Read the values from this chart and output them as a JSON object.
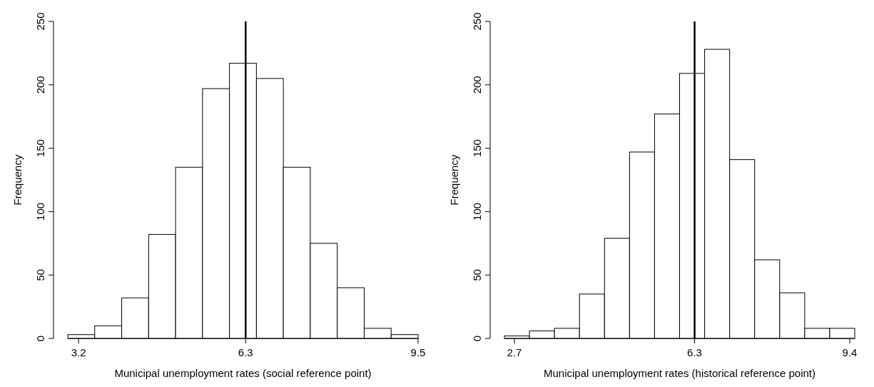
{
  "chart_data": [
    {
      "type": "histogram",
      "xlabel": "Municipal unemployment rates (social reference point)",
      "ylabel": "Frequency",
      "bins": [
        3.0,
        3.5,
        4.0,
        4.5,
        5.0,
        5.5,
        6.0,
        6.5,
        7.0,
        7.5,
        8.0,
        8.5,
        9.0,
        9.5
      ],
      "values": [
        3,
        10,
        32,
        82,
        135,
        197,
        217,
        205,
        135,
        75,
        40,
        8,
        3
      ],
      "color": "#ffffff",
      "xlim": [
        3.0,
        9.5
      ],
      "xticks": [
        3.2,
        6.3,
        9.5
      ],
      "ylim": [
        0,
        250
      ],
      "yticks": [
        0,
        50,
        100,
        150,
        200,
        250
      ],
      "ref_lines": [
        {
          "axis": "x",
          "value": 6.3,
          "color": "#000000"
        }
      ]
    },
    {
      "type": "histogram",
      "xlabel": "Municipal unemployment rates (historical reference point)",
      "ylabel": "Frequency",
      "bins": [
        2.5,
        3.0,
        3.5,
        4.0,
        4.5,
        5.0,
        5.5,
        6.0,
        6.5,
        7.0,
        7.5,
        8.0,
        8.5,
        9.0,
        9.5
      ],
      "values": [
        2,
        6,
        8,
        35,
        79,
        147,
        177,
        209,
        228,
        141,
        62,
        36,
        8,
        8
      ],
      "color": "#ffffff",
      "xlim": [
        2.5,
        9.5
      ],
      "xticks": [
        2.7,
        6.3,
        9.4
      ],
      "ylim": [
        0,
        250
      ],
      "yticks": [
        0,
        50,
        100,
        150,
        200,
        250
      ],
      "ref_lines": [
        {
          "axis": "x",
          "value": 6.3,
          "color": "#000000"
        }
      ]
    }
  ]
}
